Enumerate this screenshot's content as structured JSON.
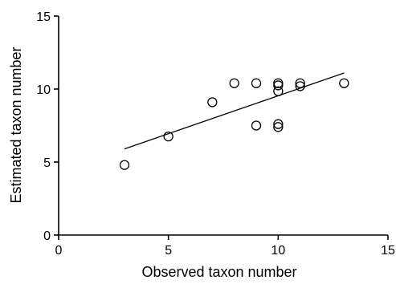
{
  "chart_data": {
    "type": "scatter",
    "xlabel": "Observed taxon number",
    "ylabel": "Estimated taxon number",
    "xlim": [
      0,
      15
    ],
    "ylim": [
      0,
      15
    ],
    "xticks": [
      0,
      5,
      10,
      15
    ],
    "yticks": [
      0,
      5,
      10,
      15
    ],
    "x_tick_labels": [
      "0",
      "5",
      "10",
      "15"
    ],
    "y_tick_labels": [
      "0",
      "5",
      "10",
      "15"
    ],
    "grid": false,
    "marker": "open-circle",
    "points": [
      {
        "x": 3,
        "y": 4.8
      },
      {
        "x": 5,
        "y": 6.75
      },
      {
        "x": 7,
        "y": 9.1
      },
      {
        "x": 8,
        "y": 10.4
      },
      {
        "x": 9,
        "y": 10.4
      },
      {
        "x": 9,
        "y": 7.5
      },
      {
        "x": 10,
        "y": 10.4
      },
      {
        "x": 10,
        "y": 10.25
      },
      {
        "x": 10,
        "y": 9.85
      },
      {
        "x": 10,
        "y": 7.6
      },
      {
        "x": 10,
        "y": 7.4
      },
      {
        "x": 11,
        "y": 10.4
      },
      {
        "x": 11,
        "y": 10.2
      },
      {
        "x": 13,
        "y": 10.4
      }
    ],
    "fit_line": {
      "x": [
        3,
        13
      ],
      "y": [
        5.9,
        11.1
      ]
    }
  }
}
